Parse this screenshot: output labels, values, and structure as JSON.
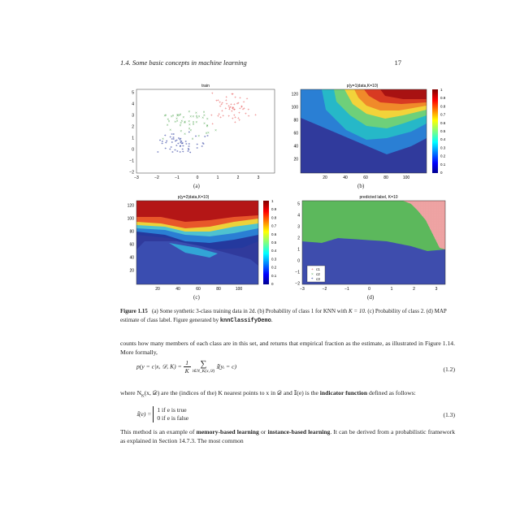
{
  "header": {
    "section": "1.4.  Some basic concepts in machine learning",
    "page": "17"
  },
  "figures": {
    "a": {
      "title": "train",
      "label": "(a)",
      "xticks": [
        "−3",
        "−2",
        "−1",
        "0",
        "1",
        "2",
        "3"
      ],
      "yticks": [
        "5",
        "4",
        "3",
        "2",
        "1",
        "0",
        "−1",
        "−2"
      ]
    },
    "b": {
      "title": "p(y=1|data,K=10)",
      "label": "(b)",
      "xticks": [
        "20",
        "40",
        "60",
        "80",
        "100"
      ],
      "yticks": [
        "120",
        "100",
        "80",
        "60",
        "40",
        "20"
      ],
      "cbar": [
        "1",
        "0.9",
        "0.8",
        "0.7",
        "0.6",
        "0.5",
        "0.4",
        "0.3",
        "0.2",
        "0.1",
        "0"
      ]
    },
    "c": {
      "title": "p(y=2|data,K=10)",
      "label": "(c)",
      "xticks": [
        "20",
        "40",
        "60",
        "80",
        "100"
      ],
      "yticks": [
        "120",
        "100",
        "80",
        "60",
        "40",
        "20"
      ],
      "cbar": [
        "1",
        "0.9",
        "0.8",
        "0.7",
        "0.6",
        "0.5",
        "0.4",
        "0.3",
        "0.2",
        "0.1",
        "0"
      ]
    },
    "d": {
      "title": "predicted label,  K=10",
      "label": "(d)",
      "xticks": [
        "−3",
        "−2",
        "−1",
        "0",
        "1",
        "2",
        "3"
      ],
      "yticks": [
        "5",
        "4",
        "3",
        "2",
        "1",
        "0",
        "−1",
        "−2"
      ],
      "legend": [
        "c1",
        "c2",
        "c3"
      ]
    }
  },
  "colors": {
    "red": "#e0403c",
    "green": "#5cb85c",
    "blue": "#3848a8"
  },
  "caption": {
    "label": "Figure 1.15",
    "text_a": "(a) Some synthetic 3-class training data in 2d. (b) Probability of class 1 for KNN with",
    "k_eq": "K = 10.",
    "text_b": "(c) Probability of class 2. (d) MAP estimate of class label. Figure generated by",
    "code": "knnClassifyDemo",
    "end": "."
  },
  "para1": "counts how many members of each class are in this set, and returns that empirical fraction as the estimate, as illustrated in Figure 1.14. More formally,",
  "eq1": {
    "lhs": "p(y = c|x, 𝒟, K) =",
    "num": "1",
    "den": "K",
    "sum": "∑",
    "sub": "i∈N_K(x,𝒟)",
    "rhs": "𝕀(yᵢ = c)",
    "no": "(1.2)"
  },
  "para2a": "where N",
  "para2b": "K",
  "para2c": "(x, 𝒟) are the (indices of the) K nearest points to x in 𝒟 and 𝕀(e) is the",
  "para2d": "indicator function",
  "para2e": "defined as follows:",
  "eq2": {
    "lhs": "𝕀(e) =",
    "c1": "1    if e is true",
    "c2": "0    if e is false",
    "no": "(1.3)"
  },
  "para3a": "This method is an example of",
  "para3b": "memory-based learning",
  "para3c": "or",
  "para3d": "instance-based learning",
  "para3e": ". It can be derived from a probabilistic framework as explained in Section 14.7.3. The most common"
}
